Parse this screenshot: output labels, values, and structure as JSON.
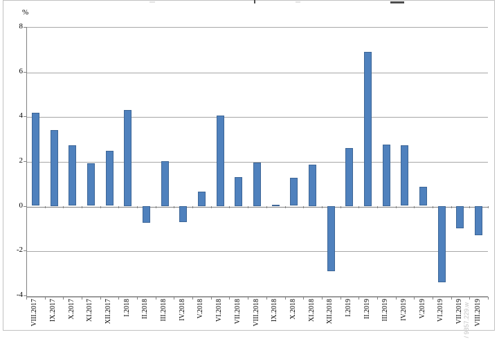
{
  "watermark": "/ 9857.229.w",
  "chart_data": {
    "type": "bar",
    "unit_label": "%",
    "categories": [
      "VIII.2017",
      "IX.2017",
      "X.2017",
      "XI.2017",
      "XII.2017",
      "I.2018",
      "II.2018",
      "III.2018",
      "IV.2018",
      "V.2018",
      "VI.2018",
      "VII.2018",
      "VIII.2018",
      "IX.2018",
      "X.2018",
      "XI.2018",
      "XII.2018",
      "I.2019",
      "II.2019",
      "III.2019",
      "IV.2019",
      "V.2019",
      "VI.2019",
      "VII.2019",
      "VIII.2019"
    ],
    "values": [
      4.15,
      3.4,
      2.7,
      1.9,
      2.45,
      4.3,
      -0.75,
      2.0,
      -0.7,
      0.65,
      4.05,
      1.3,
      1.95,
      0.05,
      1.25,
      1.85,
      -2.9,
      2.6,
      6.9,
      2.75,
      2.7,
      0.85,
      -3.4,
      -1.0,
      -1.3
    ],
    "ylim": [
      -4,
      8
    ],
    "yticks": [
      8,
      6,
      4,
      2,
      0,
      -2,
      -4
    ],
    "xlabel": "",
    "ylabel": "%",
    "grid": true,
    "legend": "none",
    "bar_color": "#4f81bd",
    "bar_border_color": "#3c6596",
    "gridline_color": "#a6a6a6",
    "axis_color": "#808080"
  }
}
